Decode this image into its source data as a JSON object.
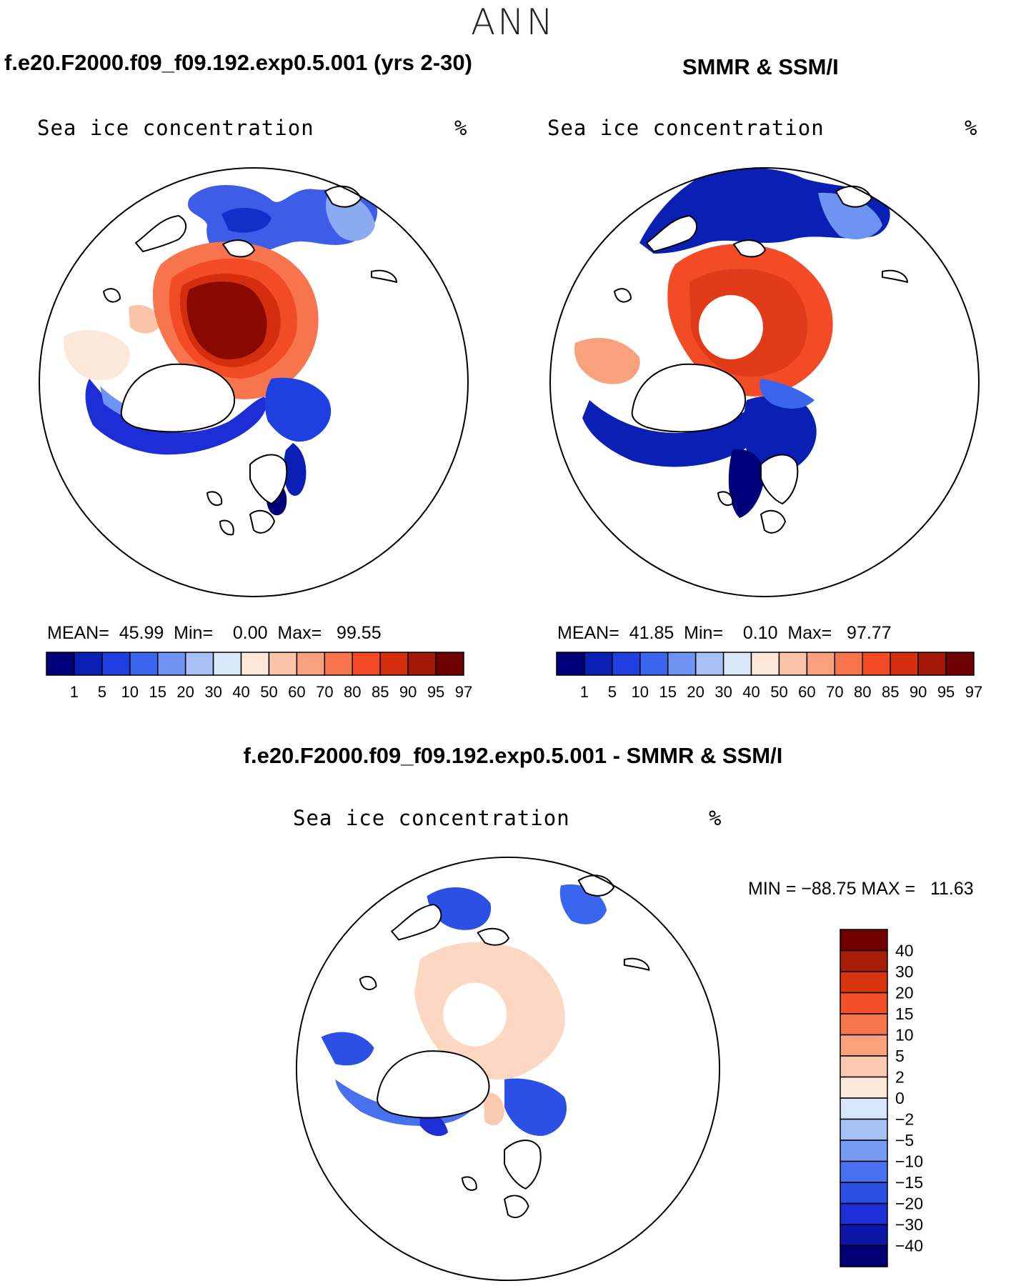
{
  "season": "ANN",
  "panels": {
    "model": {
      "title": "f.e20.F2000.f09_f09.192.exp0.5.001 (yrs 2-30)",
      "variable": "Sea ice concentration",
      "units": "%",
      "stats": "MEAN=  45.99  Min=    0.00  Max=   99.55"
    },
    "obs": {
      "title": "SMMR & SSM/I",
      "variable": "Sea ice concentration",
      "units": "%",
      "stats": "MEAN=  41.85  Min=    0.10  Max=   97.77"
    },
    "diff": {
      "title": "f.e20.F2000.f09_f09.192.exp0.5.001 - SMMR & SSM/I",
      "variable": "Sea ice concentration",
      "units": "%",
      "stats": "MIN = −88.75 MAX =   11.63"
    }
  },
  "colorbar": {
    "colors": [
      "#00007a",
      "#0a1fb4",
      "#1f40e0",
      "#3a66ef",
      "#6f93f2",
      "#a7c1f6",
      "#d9e9fb",
      "#fde7d8",
      "#fcc3a8",
      "#f9a07c",
      "#f7744d",
      "#f24b25",
      "#d52e0e",
      "#a51808",
      "#6e0000"
    ],
    "labels": [
      "1",
      "5",
      "10",
      "15",
      "20",
      "30",
      "40",
      "50",
      "60",
      "70",
      "80",
      "85",
      "90",
      "95",
      "97"
    ]
  },
  "diff_colorbar": {
    "colors": [
      "#000073",
      "#0b15a8",
      "#1e2ed6",
      "#2c4fe6",
      "#4771ee",
      "#779af2",
      "#a6c1f6",
      "#d6e6fb",
      "#fde8db",
      "#fbc8b0",
      "#f9a27c",
      "#f6774d",
      "#f34f28",
      "#d9340f",
      "#a91c08",
      "#720000"
    ],
    "labels": [
      "40",
      "30",
      "20",
      "15",
      "10",
      "5",
      "2",
      "0",
      "−2",
      "−5",
      "−10",
      "−15",
      "−20",
      "−30",
      "−40"
    ]
  }
}
